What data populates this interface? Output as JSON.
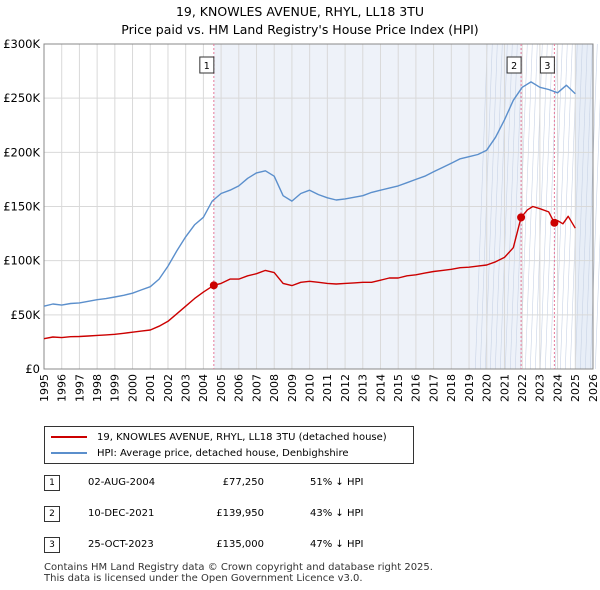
{
  "title_line1": "19, KNOWLES AVENUE, RHYL, LL18 3TU",
  "title_line2": "Price paid vs. HM Land Registry's House Price Index (HPI)",
  "colors": {
    "property": "#cc0000",
    "hpi": "#5b8fcc",
    "future_shade": "#e8eef7",
    "band_shade": "#eef2f9",
    "marker_line": "#e57a9a",
    "grid": "#d9d9d9"
  },
  "chart_data": {
    "type": "line",
    "ylim": [
      0,
      300000
    ],
    "xlim": [
      1995,
      2026
    ],
    "yticks": [
      0,
      50000,
      100000,
      150000,
      200000,
      250000,
      300000
    ],
    "ytick_labels": [
      "£0",
      "£50K",
      "£100K",
      "£150K",
      "£200K",
      "£250K",
      "£300K"
    ],
    "xticks": [
      1995,
      1996,
      1997,
      1998,
      1999,
      2000,
      2001,
      2002,
      2003,
      2004,
      2005,
      2006,
      2007,
      2008,
      2009,
      2010,
      2011,
      2012,
      2013,
      2014,
      2015,
      2016,
      2017,
      2018,
      2019,
      2020,
      2021,
      2022,
      2023,
      2024,
      2025,
      2026
    ],
    "xtick_labels": [
      "1995",
      "1996",
      "1997",
      "1998",
      "1999",
      "2000",
      "2001",
      "2002",
      "2003",
      "2004",
      "2005",
      "2006",
      "2007",
      "2008",
      "2009",
      "2010",
      "2011",
      "2012",
      "2013",
      "2014",
      "2015",
      "2016",
      "2017",
      "2018",
      "2019",
      "2020",
      "2021",
      "2022",
      "2023",
      "2024",
      "2025",
      "2026"
    ],
    "data_end_year": 2025.0,
    "series": [
      {
        "name": "19, KNOWLES AVENUE, RHYL, LL18 3TU (detached house)",
        "color": "#cc0000",
        "x": [
          1995,
          1995.5,
          1996,
          1996.5,
          1997,
          1997.5,
          1998,
          1998.5,
          1999,
          1999.5,
          2000,
          2000.5,
          2001,
          2001.5,
          2002,
          2002.5,
          2003,
          2003.5,
          2004,
          2004.59,
          2005,
          2005.5,
          2006,
          2006.5,
          2007,
          2007.5,
          2008,
          2008.5,
          2009,
          2009.5,
          2010,
          2010.5,
          2011,
          2011.5,
          2012,
          2012.5,
          2013,
          2013.5,
          2014,
          2014.5,
          2015,
          2015.5,
          2016,
          2016.5,
          2017,
          2017.5,
          2018,
          2018.5,
          2019,
          2019.5,
          2020,
          2020.5,
          2021,
          2021.5,
          2021.94,
          2022.3,
          2022.6,
          2023,
          2023.5,
          2023.82,
          2024,
          2024.3,
          2024.6,
          2025
        ],
        "values": [
          28000,
          29500,
          29000,
          29800,
          30000,
          30500,
          31000,
          31500,
          32000,
          33000,
          34000,
          35000,
          36000,
          39500,
          44000,
          51000,
          58000,
          65000,
          71000,
          77250,
          79000,
          83000,
          83000,
          86000,
          88000,
          91000,
          89000,
          79000,
          77000,
          80000,
          81000,
          80000,
          79000,
          78500,
          79000,
          79500,
          80000,
          80000,
          82000,
          84000,
          84000,
          86000,
          87000,
          88500,
          90000,
          91000,
          92000,
          93500,
          94000,
          95000,
          96000,
          99000,
          103000,
          112000,
          139950,
          147000,
          150000,
          148000,
          145000,
          135000,
          137000,
          134000,
          141000,
          130000
        ]
      },
      {
        "name": "HPI: Average price, detached house, Denbighshire",
        "color": "#5b8fcc",
        "x": [
          1995,
          1995.5,
          1996,
          1996.5,
          1997,
          1997.5,
          1998,
          1998.5,
          1999,
          1999.5,
          2000,
          2000.5,
          2001,
          2001.5,
          2002,
          2002.5,
          2003,
          2003.5,
          2004,
          2004.5,
          2005,
          2005.5,
          2006,
          2006.5,
          2007,
          2007.5,
          2008,
          2008.5,
          2009,
          2009.5,
          2010,
          2010.5,
          2011,
          2011.5,
          2012,
          2012.5,
          2013,
          2013.5,
          2014,
          2014.5,
          2015,
          2015.5,
          2016,
          2016.5,
          2017,
          2017.5,
          2018,
          2018.5,
          2019,
          2019.5,
          2020,
          2020.5,
          2021,
          2021.5,
          2022,
          2022.5,
          2023,
          2023.5,
          2024,
          2024.5,
          2025
        ],
        "values": [
          58000,
          60000,
          59000,
          60500,
          61000,
          62500,
          64000,
          65000,
          66500,
          68000,
          70000,
          73000,
          76000,
          83000,
          95000,
          109000,
          122000,
          133000,
          140000,
          155000,
          162000,
          165000,
          169000,
          176000,
          181000,
          183000,
          178000,
          160000,
          155000,
          162000,
          165000,
          161000,
          158000,
          156000,
          157000,
          158500,
          160000,
          163000,
          165000,
          167000,
          169000,
          172000,
          175000,
          178000,
          182000,
          186000,
          190000,
          194000,
          196000,
          198000,
          202000,
          214000,
          230000,
          248000,
          260000,
          265000,
          260000,
          258000,
          255000,
          262000,
          254000
        ]
      }
    ],
    "transactions": [
      {
        "label": "1",
        "x": 2004.59,
        "y": 77250
      },
      {
        "label": "2",
        "x": 2021.94,
        "y": 139950
      },
      {
        "label": "3",
        "x": 2023.82,
        "y": 135000
      }
    ]
  },
  "legend": {
    "property": "19, KNOWLES AVENUE, RHYL, LL18 3TU (detached house)",
    "hpi": "HPI: Average price, detached house, Denbighshire"
  },
  "table": [
    {
      "num": "1",
      "date": "02-AUG-2004",
      "price": "£77,250",
      "hpi": "51% ↓ HPI"
    },
    {
      "num": "2",
      "date": "10-DEC-2021",
      "price": "£139,950",
      "hpi": "43% ↓ HPI"
    },
    {
      "num": "3",
      "date": "25-OCT-2023",
      "price": "£135,000",
      "hpi": "47% ↓ HPI"
    }
  ],
  "footer_line1": "Contains HM Land Registry data © Crown copyright and database right 2025.",
  "footer_line2": "This data is licensed under the Open Government Licence v3.0."
}
